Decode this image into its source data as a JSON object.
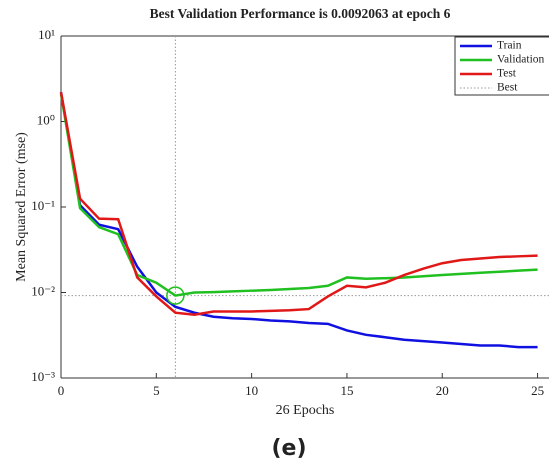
{
  "chart_data": {
    "type": "line",
    "title": "Best Validation Performance is 0.0092063 at epoch 6",
    "xlabel": "26 Epochs",
    "ylabel": "Mean Squared Error  (mse)",
    "caption": "(e)",
    "x": [
      0,
      1,
      2,
      3,
      4,
      5,
      6,
      7,
      8,
      9,
      10,
      11,
      12,
      13,
      14,
      15,
      16,
      17,
      18,
      19,
      20,
      21,
      22,
      23,
      24,
      25
    ],
    "series": [
      {
        "name": "Train",
        "color": "#1010e0",
        "values": [
          2.2,
          0.105,
          0.062,
          0.055,
          0.02,
          0.01,
          0.0068,
          0.0058,
          0.0052,
          0.005,
          0.0049,
          0.0047,
          0.0046,
          0.0044,
          0.0043,
          0.0036,
          0.0032,
          0.003,
          0.0028,
          0.0027,
          0.0026,
          0.0025,
          0.0024,
          0.0024,
          0.0023,
          0.0023
        ]
      },
      {
        "name": "Validation",
        "color": "#20c020",
        "values": [
          2.1,
          0.097,
          0.058,
          0.048,
          0.016,
          0.013,
          0.0092063,
          0.01,
          0.0101,
          0.0103,
          0.0105,
          0.0107,
          0.011,
          0.0113,
          0.012,
          0.015,
          0.0145,
          0.0147,
          0.015,
          0.0155,
          0.016,
          0.0165,
          0.017,
          0.0175,
          0.018,
          0.0185
        ]
      },
      {
        "name": "Test",
        "color": "#e01818",
        "values": [
          2.2,
          0.125,
          0.073,
          0.072,
          0.015,
          0.009,
          0.0058,
          0.0055,
          0.006,
          0.006,
          0.006,
          0.0061,
          0.0062,
          0.0064,
          0.009,
          0.012,
          0.0115,
          0.013,
          0.016,
          0.019,
          0.022,
          0.024,
          0.025,
          0.026,
          0.0265,
          0.027
        ]
      }
    ],
    "best": {
      "name": "Best",
      "epoch": 6,
      "value": 0.0092063,
      "color": "#999999"
    },
    "xlim": [
      0,
      25.6
    ],
    "xticks": [
      0,
      5,
      10,
      15,
      20,
      25
    ],
    "ylim": [
      0.001,
      10
    ],
    "yticks": [
      {
        "value": 0.001,
        "label": "10⁻³"
      },
      {
        "value": 0.01,
        "label": "10⁻²"
      },
      {
        "value": 0.1,
        "label": "10⁻¹"
      },
      {
        "value": 1,
        "label": "10⁰"
      },
      {
        "value": 10,
        "label": "10¹"
      }
    ],
    "log_y": true,
    "legend": "top-right"
  }
}
